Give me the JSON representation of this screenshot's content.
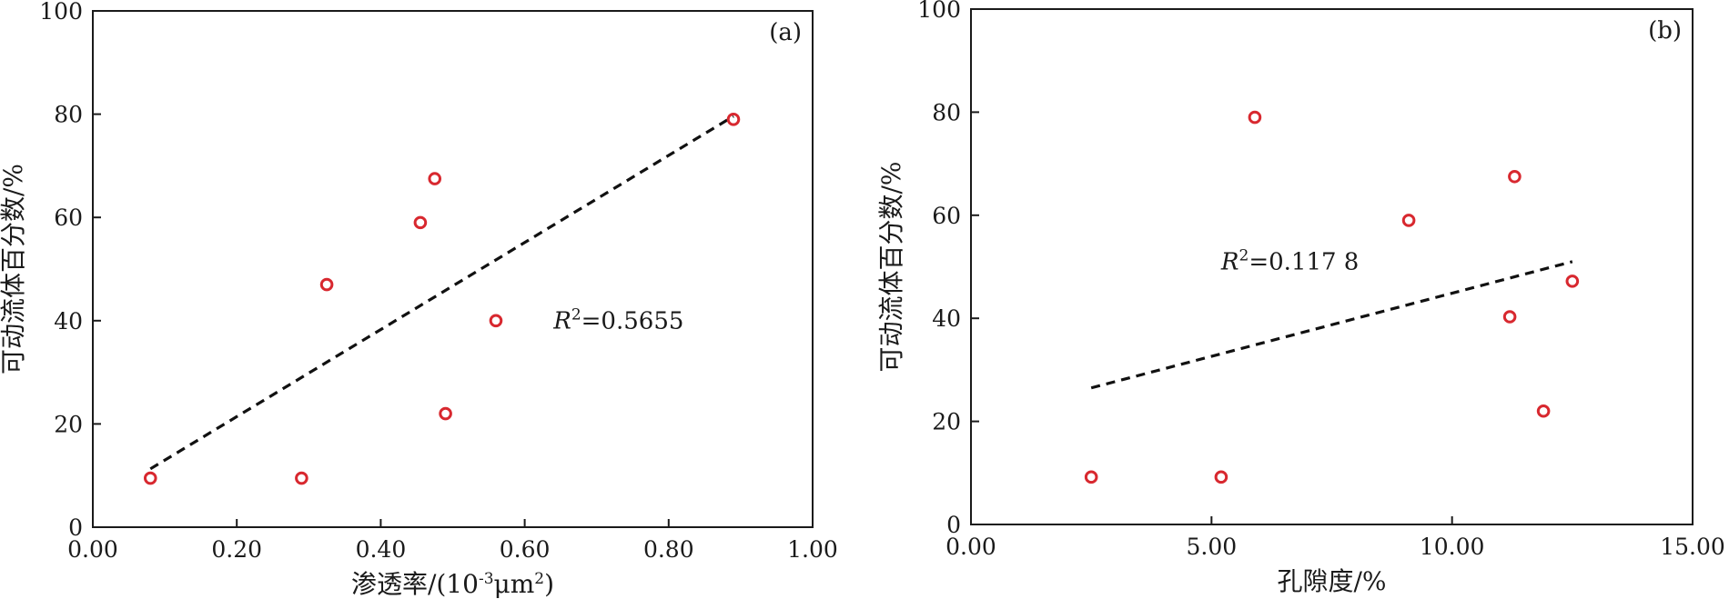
{
  "chart_data": [
    {
      "type": "scatter",
      "panel_label": "(a)",
      "xlabel_main": "渗透率/(10",
      "xlabel_exp": "-3",
      "xlabel_unit": "μm",
      "xlabel_unit_exp": "2",
      "xlabel_close": ")",
      "ylabel": "可动流体百分数/%",
      "xlim": [
        0,
        1
      ],
      "ylim": [
        0,
        100
      ],
      "xticks": [
        0,
        0.2,
        0.4,
        0.6,
        0.8,
        1.0
      ],
      "xtick_labels": [
        "0.00",
        "0.20",
        "0.40",
        "0.60",
        "0.80",
        "1.00"
      ],
      "yticks": [
        0,
        20,
        40,
        60,
        80,
        100
      ],
      "ytick_labels": [
        "0",
        "20",
        "40",
        "60",
        "80",
        "100"
      ],
      "points": [
        {
          "x": 0.08,
          "y": 9.5
        },
        {
          "x": 0.29,
          "y": 9.5
        },
        {
          "x": 0.325,
          "y": 47
        },
        {
          "x": 0.455,
          "y": 59
        },
        {
          "x": 0.475,
          "y": 67.5
        },
        {
          "x": 0.49,
          "y": 22
        },
        {
          "x": 0.56,
          "y": 40
        },
        {
          "x": 0.89,
          "y": 79
        }
      ],
      "trendline": {
        "x": [
          0.08,
          0.89
        ],
        "y": [
          11.3,
          79.6
        ]
      },
      "r2_prefix": "R",
      "r2_sup": "2",
      "r2_value": "=0.5655",
      "r2_anchor": {
        "x": 0.64,
        "y": 38.5
      },
      "colors": {
        "marker": "#d8282f",
        "line": "#111111",
        "axes": "#1a1a1a"
      }
    },
    {
      "type": "scatter",
      "panel_label": "(b)",
      "xlabel": "孔隙度/%",
      "ylabel": "可动流体百分数/%",
      "xlim": [
        0,
        15
      ],
      "ylim": [
        0,
        100
      ],
      "xticks": [
        0,
        5,
        10,
        15
      ],
      "xtick_labels": [
        "0.00",
        "5.00",
        "10.00",
        "15.00"
      ],
      "yticks": [
        0,
        20,
        40,
        60,
        80,
        100
      ],
      "ytick_labels": [
        "0",
        "20",
        "40",
        "60",
        "80",
        "100"
      ],
      "points": [
        {
          "x": 2.5,
          "y": 9.2
        },
        {
          "x": 5.2,
          "y": 9.2
        },
        {
          "x": 5.9,
          "y": 79
        },
        {
          "x": 9.1,
          "y": 59
        },
        {
          "x": 11.2,
          "y": 40.3
        },
        {
          "x": 11.3,
          "y": 67.5
        },
        {
          "x": 11.9,
          "y": 22
        },
        {
          "x": 12.5,
          "y": 47.2
        }
      ],
      "trendline": {
        "x": [
          2.5,
          12.5
        ],
        "y": [
          26.5,
          51
        ]
      },
      "r2_prefix": "R",
      "r2_sup": "2",
      "r2_value": "=0.117 8",
      "r2_anchor": {
        "x": 5.2,
        "y": 49.5
      },
      "colors": {
        "marker": "#d8282f",
        "line": "#111111",
        "axes": "#1a1a1a"
      }
    }
  ]
}
